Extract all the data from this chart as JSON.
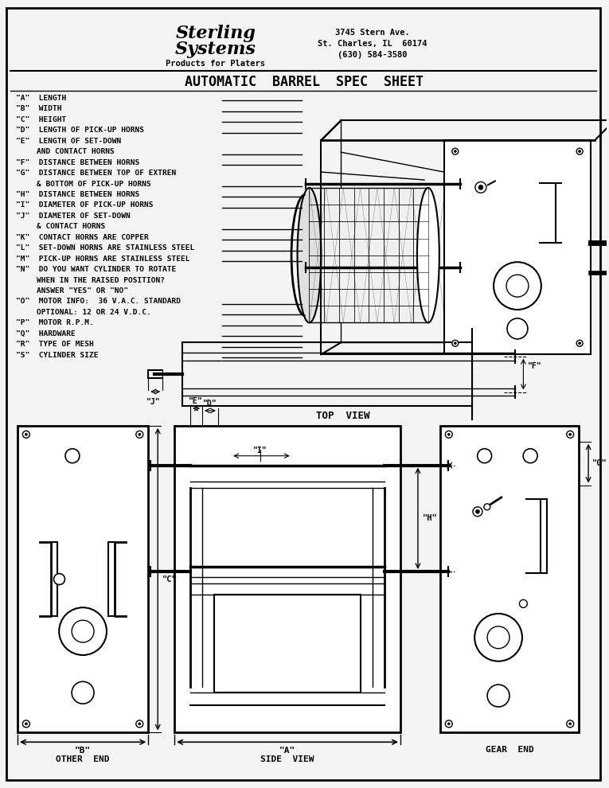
{
  "bg_color": "#f4f4f2",
  "page_bg": "#f4f4f2",
  "border_color": "#000000",
  "company1": "Sterling",
  "company2": "Systems",
  "subtitle": "Products for Platers",
  "addr1": "3745 Stern Ave.",
  "addr2": "St. Charles, IL  60174",
  "addr3": "(630) 584-3580",
  "main_title": "AUTOMATIC  BARREL  SPEC  SHEET",
  "spec_items": [
    {
      "label": "\"A\"",
      "text": "LENGTH",
      "blank": true,
      "cont": false
    },
    {
      "label": "\"B\"",
      "text": "WIDTH",
      "blank": true,
      "cont": false
    },
    {
      "label": "\"C\"",
      "text": "HEIGHT",
      "blank": true,
      "cont": false
    },
    {
      "label": "\"D\"",
      "text": "LENGTH OF PICK-UP HORNS",
      "blank": true,
      "cont": false
    },
    {
      "label": "\"E\"",
      "text": "LENGTH OF SET-DOWN",
      "blank": false,
      "cont": false
    },
    {
      "label": "",
      "text": "AND CONTACT HORNS",
      "blank": true,
      "cont": true
    },
    {
      "label": "\"F\"",
      "text": "DISTANCE BETWEEN HORNS",
      "blank": true,
      "cont": false
    },
    {
      "label": "\"G\"",
      "text": "DISTANCE BETWEEN TOP OF EXTREN",
      "blank": false,
      "cont": false
    },
    {
      "label": "",
      "text": "& BOTTOM OF PICK-UP HORNS",
      "blank": true,
      "cont": true
    },
    {
      "label": "\"H\"",
      "text": "DISTANCE BETWEEN HORNS",
      "blank": true,
      "cont": false
    },
    {
      "label": "\"I\"",
      "text": "DIAMETER OF PICK-UP HORNS",
      "blank": true,
      "cont": false
    },
    {
      "label": "\"J\"",
      "text": "DIAMETER OF SET-DOWN",
      "blank": false,
      "cont": false
    },
    {
      "label": "",
      "text": "& CONTACT HORNS",
      "blank": true,
      "cont": true
    },
    {
      "label": "\"K\"",
      "text": "CONTACT HORNS ARE COPPER",
      "blank": true,
      "cont": false
    },
    {
      "label": "\"L\"",
      "text": "SET-DOWN HORNS ARE STAINLESS STEEL",
      "blank": true,
      "cont": false
    },
    {
      "label": "\"M\"",
      "text": "PICK-UP HORNS ARE STAINLESS STEEL",
      "blank": true,
      "cont": false
    },
    {
      "label": "\"N\"",
      "text": "DO YOU WANT CYLINDER TO ROTATE",
      "blank": false,
      "cont": false
    },
    {
      "label": "",
      "text": "WHEN IN THE RAISED POSITION?",
      "blank": false,
      "cont": true
    },
    {
      "label": "",
      "text": "ANSWER \"YES\" OR \"NO\"",
      "blank": false,
      "cont": true
    },
    {
      "label": "\"O\"",
      "text": "MOTOR INFO:  36 V.A.C. STANDARD",
      "blank": true,
      "cont": false
    },
    {
      "label": "",
      "text": "OPTIONAL: 12 OR 24 V.D.C.",
      "blank": true,
      "cont": true
    },
    {
      "label": "\"P\"",
      "text": "MOTOR R.P.M.",
      "blank": true,
      "cont": false
    },
    {
      "label": "\"Q\"",
      "text": "HARDWARE",
      "blank": true,
      "cont": false
    },
    {
      "label": "\"R\"",
      "text": "TYPE OF MESH",
      "blank": true,
      "cont": false
    },
    {
      "label": "\"S\"",
      "text": "CYLINDER SIZE",
      "blank": true,
      "cont": false
    }
  ]
}
